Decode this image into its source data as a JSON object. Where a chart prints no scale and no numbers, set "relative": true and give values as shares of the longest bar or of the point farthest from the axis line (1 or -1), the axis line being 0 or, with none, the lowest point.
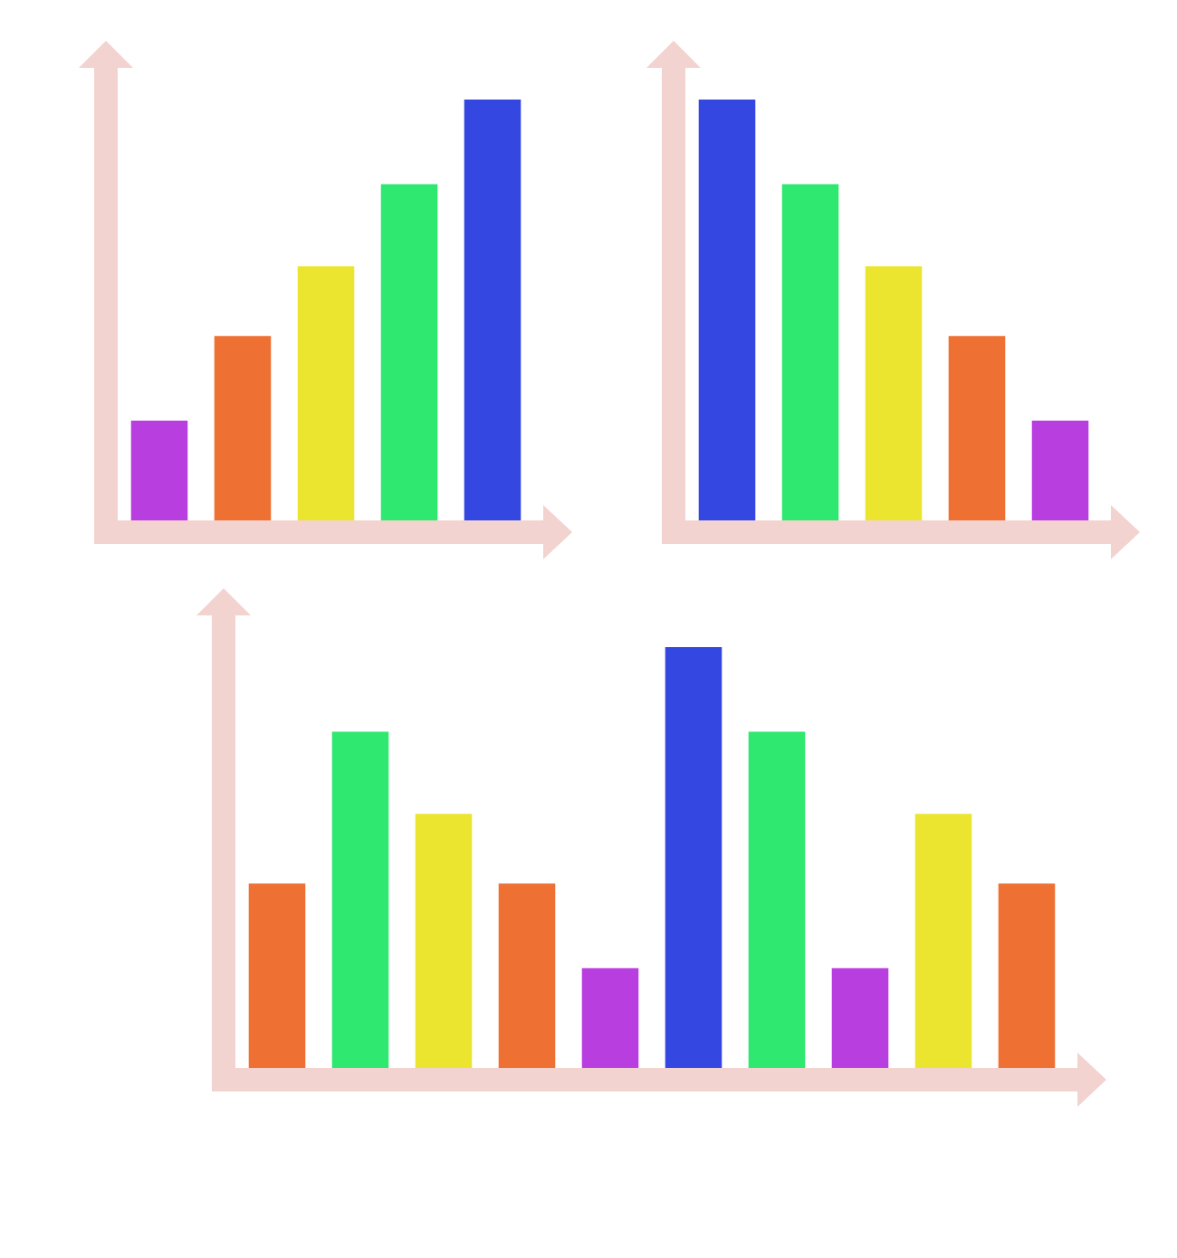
{
  "chart_data": [
    {
      "type": "bar",
      "relative": true,
      "categories": [
        null,
        null,
        null,
        null,
        null
      ],
      "values": [
        0.237,
        0.438,
        0.604,
        0.799,
        1
      ],
      "colors": [
        "#b93ee0",
        "#ee7033",
        "#ece52f",
        "#2ee870",
        "#3447e0"
      ]
    },
    {
      "type": "bar",
      "relative": true,
      "categories": [
        null,
        null,
        null,
        null,
        null
      ],
      "values": [
        1,
        0.799,
        0.604,
        0.438,
        0.237
      ],
      "colors": [
        "#3447e0",
        "#2ee870",
        "#ece52f",
        "#ee7033",
        "#b93ee0"
      ]
    },
    {
      "type": "bar",
      "relative": true,
      "categories": [
        null,
        null,
        null,
        null,
        null,
        null,
        null,
        null,
        null,
        null
      ],
      "values": [
        0.438,
        0.799,
        0.604,
        0.438,
        0.237,
        1,
        0.799,
        0.237,
        0.604,
        0.438
      ],
      "colors": [
        "#ee7033",
        "#2ee870",
        "#ece52f",
        "#ee7033",
        "#b93ee0",
        "#3447e0",
        "#2ee870",
        "#b93ee0",
        "#ece52f",
        "#ee7033"
      ]
    }
  ]
}
